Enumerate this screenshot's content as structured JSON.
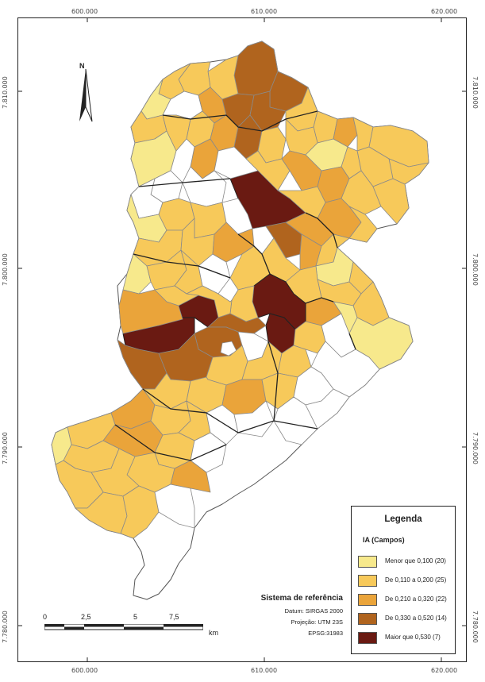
{
  "map": {
    "coords": {
      "top": [
        "600.000",
        "610.000",
        "620.000"
      ],
      "bottom": [
        "600.000",
        "610.000",
        "620.000"
      ],
      "left": [
        "7.810.000",
        "7.800.000",
        "7.790.000",
        "7.780.000"
      ],
      "right": [
        "7.810.000",
        "7.800.000",
        "7.790.000",
        "7.780.000"
      ]
    },
    "north_label": "N",
    "north_icon": "north-arrow-icon"
  },
  "legend": {
    "title": "Legenda",
    "subtitle": "IA (Campos)",
    "items": [
      {
        "label": "Menor que 0,100 (20)",
        "color": "#f7e98c"
      },
      {
        "label": "De 0,110 a 0,200 (25)",
        "color": "#f7c95a"
      },
      {
        "label": "De 0,210 a 0,320 (22)",
        "color": "#eaa43a"
      },
      {
        "label": "De 0,330 a 0,520 (14)",
        "color": "#b0641e"
      },
      {
        "label": "Maior que 0,530 (7)",
        "color": "#6a1a12"
      }
    ]
  },
  "reference": {
    "title": "Sistema de referência",
    "lines": [
      "Datum: SIRGAS 2000",
      "Projeção: UTM 23S",
      "EPSG:31983"
    ]
  },
  "scalebar": {
    "labels": [
      "0",
      "2,5",
      "5",
      "7,5"
    ],
    "unit": "km"
  }
}
